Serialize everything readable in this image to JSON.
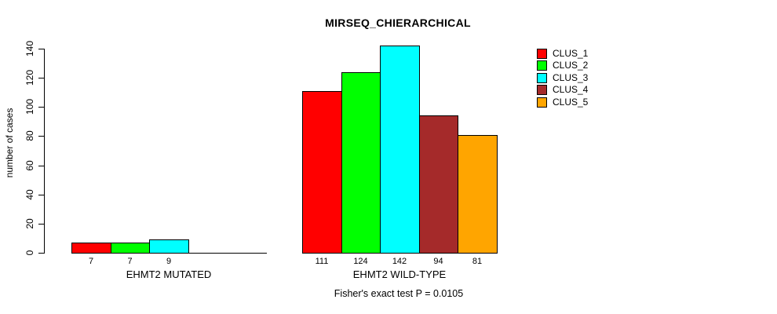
{
  "chart_data": {
    "type": "bar",
    "title": "MIRSEQ_CHIERARCHICAL",
    "ylabel": "number of cases",
    "xlabel": "",
    "caption": "Fisher's exact test P = 0.0105",
    "ylim": [
      0,
      140
    ],
    "yticks": [
      0,
      20,
      40,
      60,
      80,
      100,
      120,
      140
    ],
    "grid": false,
    "legend_position": "top-right",
    "bar_value_labels_shown": true,
    "categories": [
      "EHMT2 MUTATED",
      "EHMT2 WILD-TYPE"
    ],
    "series": [
      {
        "name": "CLUS_1",
        "color": "#FF0000",
        "values": [
          7,
          111
        ]
      },
      {
        "name": "CLUS_2",
        "color": "#00FF00",
        "values": [
          7,
          124
        ]
      },
      {
        "name": "CLUS_3",
        "color": "#00FFFF",
        "values": [
          9,
          142
        ]
      },
      {
        "name": "CLUS_4",
        "color": "#A52A2A",
        "values": [
          0,
          94
        ]
      },
      {
        "name": "CLUS_5",
        "color": "#FFA500",
        "values": [
          0,
          81
        ]
      }
    ]
  }
}
